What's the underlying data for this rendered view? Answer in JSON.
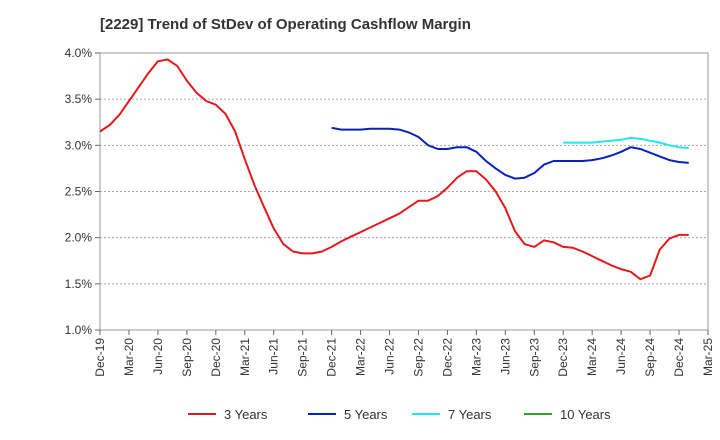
{
  "chart_data": {
    "type": "line",
    "title": "[2229]  Trend of StDev of Operating Cashflow Margin",
    "xlabel": "",
    "ylabel": "",
    "x_ticks": [
      "Dec-19",
      "Mar-20",
      "Jun-20",
      "Sep-20",
      "Dec-20",
      "Mar-21",
      "Jun-21",
      "Sep-21",
      "Dec-21",
      "Mar-22",
      "Jun-22",
      "Sep-22",
      "Dec-22",
      "Mar-23",
      "Jun-23",
      "Sep-23",
      "Dec-23",
      "Mar-24",
      "Jun-24",
      "Sep-24",
      "Dec-24",
      "Mar-25"
    ],
    "y_ticks": [
      "1.0%",
      "1.5%",
      "2.0%",
      "2.5%",
      "3.0%",
      "3.5%",
      "4.0%"
    ],
    "ylim": [
      1.0,
      4.0
    ],
    "grid": "horizontal dashed",
    "legend_position": "bottom",
    "series": [
      {
        "name": "3 Years",
        "color": "#e31a1c",
        "values": [
          [
            0,
            3.15
          ],
          [
            1,
            3.22
          ],
          [
            2,
            3.33
          ],
          [
            3,
            3.48
          ],
          [
            4,
            3.63
          ],
          [
            5,
            3.78
          ],
          [
            6,
            3.91
          ],
          [
            7,
            3.93
          ],
          [
            8,
            3.86
          ],
          [
            9,
            3.7
          ],
          [
            10,
            3.57
          ],
          [
            11,
            3.48
          ],
          [
            12,
            3.44
          ],
          [
            13,
            3.34
          ],
          [
            14,
            3.15
          ],
          [
            15,
            2.85
          ],
          [
            16,
            2.57
          ],
          [
            17,
            2.33
          ],
          [
            18,
            2.1
          ],
          [
            19,
            1.93
          ],
          [
            20,
            1.85
          ],
          [
            21,
            1.83
          ],
          [
            22,
            1.83
          ],
          [
            23,
            1.85
          ],
          [
            24,
            1.9
          ],
          [
            25,
            1.96
          ],
          [
            26,
            2.01
          ],
          [
            27,
            2.06
          ],
          [
            28,
            2.11
          ],
          [
            29,
            2.16
          ],
          [
            30,
            2.21
          ],
          [
            31,
            2.26
          ],
          [
            32,
            2.33
          ],
          [
            33,
            2.4
          ],
          [
            34,
            2.4
          ],
          [
            35,
            2.45
          ],
          [
            36,
            2.54
          ],
          [
            37,
            2.65
          ],
          [
            38,
            2.72
          ],
          [
            39,
            2.72
          ],
          [
            40,
            2.63
          ],
          [
            41,
            2.5
          ],
          [
            42,
            2.32
          ],
          [
            43,
            2.07
          ],
          [
            44,
            1.93
          ],
          [
            45,
            1.9
          ],
          [
            46,
            1.97
          ],
          [
            47,
            1.95
          ],
          [
            48,
            1.9
          ],
          [
            49,
            1.89
          ],
          [
            50,
            1.85
          ],
          [
            51,
            1.8
          ],
          [
            52,
            1.75
          ],
          [
            53,
            1.7
          ],
          [
            54,
            1.66
          ],
          [
            55,
            1.63
          ],
          [
            56,
            1.55
          ],
          [
            57,
            1.59
          ],
          [
            58,
            1.87
          ],
          [
            59,
            1.99
          ],
          [
            60,
            2.03
          ],
          [
            61,
            2.03
          ]
        ]
      },
      {
        "name": "5 Years",
        "color": "#0a1fbf",
        "values": [
          [
            24,
            3.19
          ],
          [
            25,
            3.17
          ],
          [
            26,
            3.17
          ],
          [
            27,
            3.17
          ],
          [
            28,
            3.18
          ],
          [
            29,
            3.18
          ],
          [
            30,
            3.18
          ],
          [
            31,
            3.17
          ],
          [
            32,
            3.14
          ],
          [
            33,
            3.09
          ],
          [
            34,
            3.0
          ],
          [
            35,
            2.96
          ],
          [
            36,
            2.96
          ],
          [
            37,
            2.98
          ],
          [
            38,
            2.98
          ],
          [
            39,
            2.93
          ],
          [
            40,
            2.83
          ],
          [
            41,
            2.75
          ],
          [
            42,
            2.68
          ],
          [
            43,
            2.64
          ],
          [
            44,
            2.65
          ],
          [
            45,
            2.7
          ],
          [
            46,
            2.79
          ],
          [
            47,
            2.83
          ],
          [
            48,
            2.83
          ],
          [
            49,
            2.83
          ],
          [
            50,
            2.83
          ],
          [
            51,
            2.84
          ],
          [
            52,
            2.86
          ],
          [
            53,
            2.89
          ],
          [
            54,
            2.93
          ],
          [
            55,
            2.98
          ],
          [
            56,
            2.96
          ],
          [
            57,
            2.92
          ],
          [
            58,
            2.88
          ],
          [
            59,
            2.84
          ],
          [
            60,
            2.82
          ],
          [
            61,
            2.81
          ]
        ]
      },
      {
        "name": "7 Years",
        "color": "#22e5f0",
        "values": [
          [
            48,
            3.03
          ],
          [
            49,
            3.03
          ],
          [
            50,
            3.03
          ],
          [
            51,
            3.03
          ],
          [
            52,
            3.04
          ],
          [
            53,
            3.05
          ],
          [
            54,
            3.06
          ],
          [
            55,
            3.08
          ],
          [
            56,
            3.07
          ],
          [
            57,
            3.05
          ],
          [
            58,
            3.03
          ],
          [
            59,
            3.0
          ],
          [
            60,
            2.98
          ],
          [
            61,
            2.97
          ]
        ]
      },
      {
        "name": "10 Years",
        "color": "#2ca02c",
        "values": []
      }
    ]
  }
}
